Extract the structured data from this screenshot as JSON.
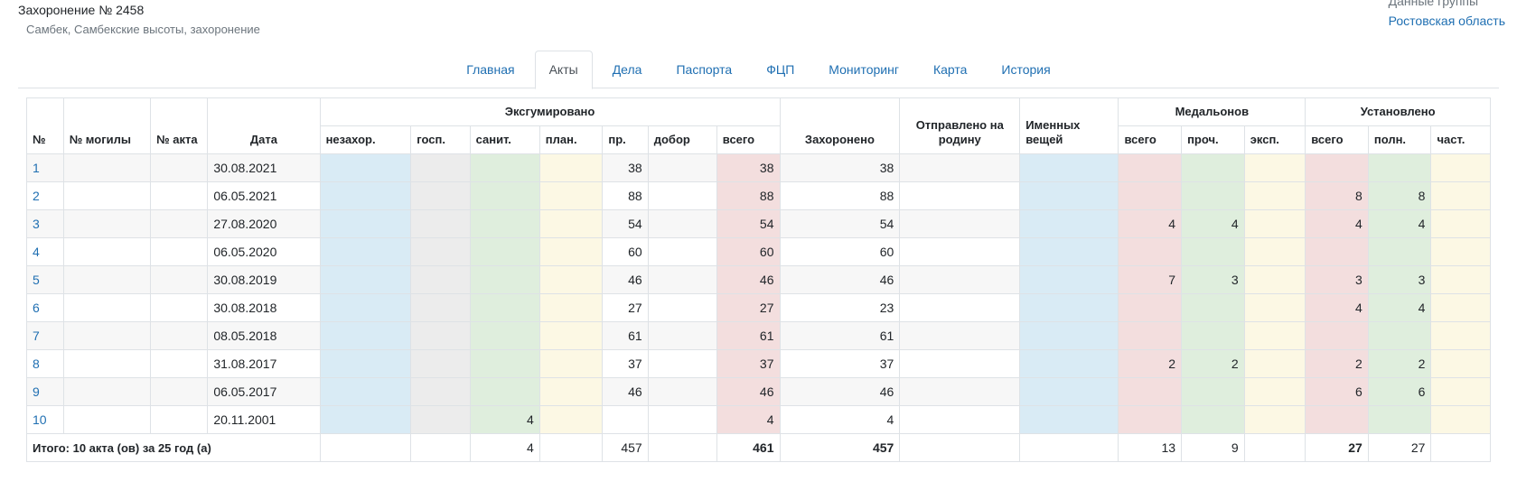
{
  "header": {
    "title": "Захоронение № 2458",
    "subtitle": "Самбек, Самбекские высоты, захоронение"
  },
  "group": {
    "label": "Данные группы",
    "region": "Ростовская область"
  },
  "tabs": [
    "Главная",
    "Акты",
    "Дела",
    "Паспорта",
    "ФЦП",
    "Мониторинг",
    "Карта",
    "История"
  ],
  "active_tab": "Акты",
  "table": {
    "headers": {
      "num": "№",
      "grave": "№ могилы",
      "act": "№ акта",
      "date": "Дата",
      "exhumed": "Эксгумировано",
      "unburied": "незахор.",
      "hosp": "госп.",
      "sanit": "санит.",
      "plan": "план.",
      "pr": "пр.",
      "dobor": "добор",
      "total": "всего",
      "buried": "Захоронено",
      "sent_home": "Отправлено на родину",
      "named_items": "Именных вещей",
      "medallions": "Медальонов",
      "med_total": "всего",
      "med_read": "проч.",
      "med_exp": "эксп.",
      "installed": "Установлено",
      "inst_total": "всего",
      "inst_full": "полн.",
      "inst_part": "част."
    },
    "rows": [
      {
        "num": "1",
        "grave": "",
        "act": "",
        "date": "30.08.2021",
        "unburied": "",
        "hosp": "",
        "sanit": "",
        "plan": "",
        "pr": "38",
        "dobor": "",
        "total": "38",
        "buried": "38",
        "sent": "",
        "named": "",
        "med_total": "",
        "med_read": "",
        "med_exp": "",
        "inst_total": "",
        "inst_full": "",
        "inst_part": ""
      },
      {
        "num": "2",
        "grave": "",
        "act": "",
        "date": "06.05.2021",
        "unburied": "",
        "hosp": "",
        "sanit": "",
        "plan": "",
        "pr": "88",
        "dobor": "",
        "total": "88",
        "buried": "88",
        "sent": "",
        "named": "",
        "med_total": "",
        "med_read": "",
        "med_exp": "",
        "inst_total": "8",
        "inst_full": "8",
        "inst_part": ""
      },
      {
        "num": "3",
        "grave": "",
        "act": "",
        "date": "27.08.2020",
        "unburied": "",
        "hosp": "",
        "sanit": "",
        "plan": "",
        "pr": "54",
        "dobor": "",
        "total": "54",
        "buried": "54",
        "sent": "",
        "named": "",
        "med_total": "4",
        "med_read": "4",
        "med_exp": "",
        "inst_total": "4",
        "inst_full": "4",
        "inst_part": ""
      },
      {
        "num": "4",
        "grave": "",
        "act": "",
        "date": "06.05.2020",
        "unburied": "",
        "hosp": "",
        "sanit": "",
        "plan": "",
        "pr": "60",
        "dobor": "",
        "total": "60",
        "buried": "60",
        "sent": "",
        "named": "",
        "med_total": "",
        "med_read": "",
        "med_exp": "",
        "inst_total": "",
        "inst_full": "",
        "inst_part": ""
      },
      {
        "num": "5",
        "grave": "",
        "act": "",
        "date": "30.08.2019",
        "unburied": "",
        "hosp": "",
        "sanit": "",
        "plan": "",
        "pr": "46",
        "dobor": "",
        "total": "46",
        "buried": "46",
        "sent": "",
        "named": "",
        "med_total": "7",
        "med_read": "3",
        "med_exp": "",
        "inst_total": "3",
        "inst_full": "3",
        "inst_part": ""
      },
      {
        "num": "6",
        "grave": "",
        "act": "",
        "date": "30.08.2018",
        "unburied": "",
        "hosp": "",
        "sanit": "",
        "plan": "",
        "pr": "27",
        "dobor": "",
        "total": "27",
        "buried": "23",
        "sent": "",
        "named": "",
        "med_total": "",
        "med_read": "",
        "med_exp": "",
        "inst_total": "4",
        "inst_full": "4",
        "inst_part": ""
      },
      {
        "num": "7",
        "grave": "",
        "act": "",
        "date": "08.05.2018",
        "unburied": "",
        "hosp": "",
        "sanit": "",
        "plan": "",
        "pr": "61",
        "dobor": "",
        "total": "61",
        "buried": "61",
        "sent": "",
        "named": "",
        "med_total": "",
        "med_read": "",
        "med_exp": "",
        "inst_total": "",
        "inst_full": "",
        "inst_part": ""
      },
      {
        "num": "8",
        "grave": "",
        "act": "",
        "date": "31.08.2017",
        "unburied": "",
        "hosp": "",
        "sanit": "",
        "plan": "",
        "pr": "37",
        "dobor": "",
        "total": "37",
        "buried": "37",
        "sent": "",
        "named": "",
        "med_total": "2",
        "med_read": "2",
        "med_exp": "",
        "inst_total": "2",
        "inst_full": "2",
        "inst_part": ""
      },
      {
        "num": "9",
        "grave": "",
        "act": "",
        "date": "06.05.2017",
        "unburied": "",
        "hosp": "",
        "sanit": "",
        "plan": "",
        "pr": "46",
        "dobor": "",
        "total": "46",
        "buried": "46",
        "sent": "",
        "named": "",
        "med_total": "",
        "med_read": "",
        "med_exp": "",
        "inst_total": "6",
        "inst_full": "6",
        "inst_part": ""
      },
      {
        "num": "10",
        "grave": "",
        "act": "",
        "date": "20.11.2001",
        "unburied": "",
        "hosp": "",
        "sanit": "4",
        "plan": "",
        "pr": "",
        "dobor": "",
        "total": "4",
        "buried": "4",
        "sent": "",
        "named": "",
        "med_total": "",
        "med_read": "",
        "med_exp": "",
        "inst_total": "",
        "inst_full": "",
        "inst_part": ""
      }
    ],
    "total_row": {
      "label": "Итого: 10 акта (ов) за 25 год (а)",
      "unburied": "",
      "hosp": "",
      "sanit": "4",
      "plan": "",
      "pr": "457",
      "dobor": "",
      "total": "461",
      "buried": "457",
      "sent": "",
      "named": "",
      "med_total": "13",
      "med_read": "9",
      "med_exp": "",
      "inst_total": "27",
      "inst_full": "27",
      "inst_part": ""
    }
  }
}
